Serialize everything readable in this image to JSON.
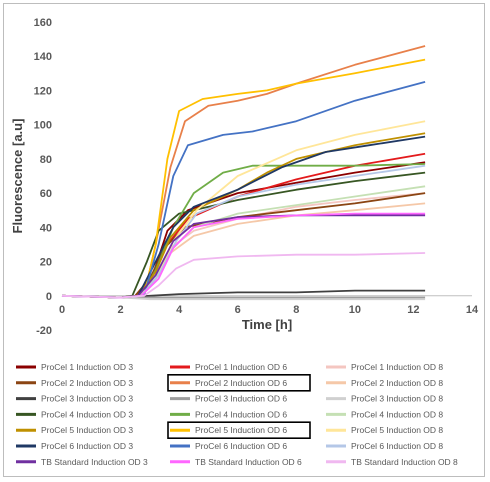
{
  "chart_data": {
    "type": "line",
    "xlabel": "Time  [h]",
    "ylabel": "Fluorescence  [a.u]",
    "xlim": [
      0,
      14
    ],
    "ylim": [
      -20,
      160
    ],
    "x_ticks": [
      "0",
      "2",
      "4",
      "6",
      "8",
      "10",
      "12",
      "14"
    ],
    "y_ticks": [
      "-20",
      "0",
      "20",
      "40",
      "60",
      "80",
      "100",
      "120",
      "140",
      "160"
    ],
    "grid": false,
    "legend_position": "bottom",
    "legend_columns": 3,
    "highlighted_entries": [
      "ProCel 2 Induction OD 6",
      "ProCel 5 Induction OD 6"
    ],
    "series": [
      {
        "name": "ProCel 1 Induction OD 3",
        "color": "#8b0000",
        "points": [
          [
            0,
            0
          ],
          [
            2,
            -1
          ],
          [
            2.5,
            0
          ],
          [
            3.1,
            12
          ],
          [
            3.6,
            38
          ],
          [
            4.3,
            50
          ],
          [
            6,
            60
          ],
          [
            8,
            66
          ],
          [
            10,
            72
          ],
          [
            12.4,
            78
          ]
        ]
      },
      {
        "name": "ProCel 1 Induction OD 6",
        "color": "#e31a1c",
        "points": [
          [
            0,
            0
          ],
          [
            2,
            -1
          ],
          [
            2.6,
            0
          ],
          [
            3.2,
            15
          ],
          [
            3.6,
            30
          ],
          [
            4.3,
            45
          ],
          [
            6,
            58
          ],
          [
            8,
            68
          ],
          [
            10,
            76
          ],
          [
            12.4,
            83
          ]
        ]
      },
      {
        "name": "ProCel 1 Induction OD 8",
        "color": "#f4c6c0",
        "points": [
          [
            0,
            0
          ],
          [
            2,
            -1
          ],
          [
            2.7,
            0
          ],
          [
            3.2,
            10
          ],
          [
            3.7,
            28
          ],
          [
            4.5,
            38
          ],
          [
            6,
            45
          ],
          [
            8,
            52
          ],
          [
            10,
            56
          ],
          [
            12.4,
            60
          ]
        ]
      },
      {
        "name": "ProCel 2 Induction OD 3",
        "color": "#8b4513",
        "points": [
          [
            0,
            0
          ],
          [
            2,
            -1
          ],
          [
            2.5,
            0
          ],
          [
            3.0,
            10
          ],
          [
            3.5,
            28
          ],
          [
            4.2,
            40
          ],
          [
            6,
            46
          ],
          [
            8,
            50
          ],
          [
            10,
            54
          ],
          [
            12.4,
            60
          ]
        ]
      },
      {
        "name": "ProCel 2 Induction OD 6",
        "color": "#e8804a",
        "points": [
          [
            0,
            0
          ],
          [
            2,
            -1
          ],
          [
            2.8,
            0
          ],
          [
            3.2,
            30
          ],
          [
            3.7,
            75
          ],
          [
            4.2,
            102
          ],
          [
            5,
            111
          ],
          [
            6,
            114
          ],
          [
            7,
            118
          ],
          [
            8,
            124
          ],
          [
            10,
            135
          ],
          [
            12.4,
            146
          ]
        ]
      },
      {
        "name": "ProCel 2 Induction OD 8",
        "color": "#f5c8a8",
        "points": [
          [
            0,
            0
          ],
          [
            2,
            -1
          ],
          [
            2.6,
            0
          ],
          [
            3.2,
            10
          ],
          [
            3.7,
            25
          ],
          [
            4.5,
            35
          ],
          [
            6,
            42
          ],
          [
            8,
            47
          ],
          [
            10,
            50
          ],
          [
            12.4,
            54
          ]
        ]
      },
      {
        "name": "ProCel 3 Induction OD 3",
        "color": "#404040",
        "points": [
          [
            0,
            0
          ],
          [
            2,
            -1
          ],
          [
            3,
            0
          ],
          [
            4,
            1
          ],
          [
            6,
            2
          ],
          [
            8,
            2
          ],
          [
            10,
            3
          ],
          [
            12.4,
            3
          ]
        ]
      },
      {
        "name": "ProCel 3 Induction OD 6",
        "color": "#9e9e9e",
        "points": [
          [
            0,
            0
          ],
          [
            2,
            -1
          ],
          [
            3,
            -1
          ],
          [
            4,
            -1
          ],
          [
            6,
            -1
          ],
          [
            8,
            -1
          ],
          [
            10,
            -1
          ],
          [
            12.4,
            -1
          ]
        ]
      },
      {
        "name": "ProCel 3 Induction OD 8",
        "color": "#d0d0d0",
        "points": [
          [
            0,
            0
          ],
          [
            2,
            -1
          ],
          [
            3,
            -2
          ],
          [
            4,
            -2
          ],
          [
            6,
            -2
          ],
          [
            8,
            -2
          ],
          [
            10,
            -2
          ],
          [
            12.4,
            -2
          ]
        ]
      },
      {
        "name": "ProCel 4 Induction OD 3",
        "color": "#375623",
        "points": [
          [
            0,
            0
          ],
          [
            2,
            -1
          ],
          [
            2.4,
            0
          ],
          [
            2.9,
            20
          ],
          [
            3.3,
            38
          ],
          [
            4,
            48
          ],
          [
            6,
            56
          ],
          [
            8,
            62
          ],
          [
            10,
            67
          ],
          [
            12.4,
            72
          ]
        ]
      },
      {
        "name": "ProCel 4 Induction OD 6",
        "color": "#70ad47",
        "points": [
          [
            0,
            0
          ],
          [
            2,
            -1
          ],
          [
            2.7,
            0
          ],
          [
            3.2,
            15
          ],
          [
            3.8,
            40
          ],
          [
            4.5,
            60
          ],
          [
            5.5,
            72
          ],
          [
            6.5,
            76
          ],
          [
            8,
            76
          ],
          [
            10,
            76
          ],
          [
            12.4,
            77
          ]
        ]
      },
      {
        "name": "ProCel 4 Induction OD 8",
        "color": "#c5e0b4",
        "points": [
          [
            0,
            0
          ],
          [
            2,
            -1
          ],
          [
            2.6,
            0
          ],
          [
            3.2,
            10
          ],
          [
            3.8,
            28
          ],
          [
            4.5,
            40
          ],
          [
            6,
            48
          ],
          [
            8,
            53
          ],
          [
            10,
            58
          ],
          [
            12.4,
            64
          ]
        ]
      },
      {
        "name": "ProCel 5 Induction OD 3",
        "color": "#bf9000",
        "points": [
          [
            0,
            0
          ],
          [
            2,
            -1
          ],
          [
            2.6,
            0
          ],
          [
            3.2,
            14
          ],
          [
            3.7,
            34
          ],
          [
            4.5,
            50
          ],
          [
            6,
            62
          ],
          [
            7,
            72
          ],
          [
            8,
            80
          ],
          [
            10,
            88
          ],
          [
            12.4,
            95
          ]
        ]
      },
      {
        "name": "ProCel 5 Induction OD 6",
        "color": "#ffc000",
        "points": [
          [
            0,
            0
          ],
          [
            2,
            -1
          ],
          [
            2.8,
            0
          ],
          [
            3.2,
            30
          ],
          [
            3.6,
            80
          ],
          [
            4,
            108
          ],
          [
            4.8,
            115
          ],
          [
            6,
            118
          ],
          [
            7,
            120
          ],
          [
            8,
            124
          ],
          [
            10,
            130
          ],
          [
            12.4,
            138
          ]
        ]
      },
      {
        "name": "ProCel 5 Induction OD 8",
        "color": "#ffe699",
        "points": [
          [
            0,
            0
          ],
          [
            2,
            -1
          ],
          [
            2.7,
            0
          ],
          [
            3.3,
            12
          ],
          [
            3.8,
            32
          ],
          [
            4.6,
            50
          ],
          [
            6,
            70
          ],
          [
            8,
            85
          ],
          [
            10,
            94
          ],
          [
            12.4,
            102
          ]
        ]
      },
      {
        "name": "ProCel 6 Induction OD 3",
        "color": "#1f3864",
        "points": [
          [
            0,
            0
          ],
          [
            2,
            -1
          ],
          [
            2.6,
            0
          ],
          [
            3.2,
            20
          ],
          [
            3.8,
            40
          ],
          [
            4.5,
            52
          ],
          [
            6,
            62
          ],
          [
            7.5,
            75
          ],
          [
            9,
            84
          ],
          [
            10.5,
            88
          ],
          [
            12.4,
            93
          ]
        ]
      },
      {
        "name": "ProCel 6 Induction OD 6",
        "color": "#4472c4",
        "points": [
          [
            0,
            0
          ],
          [
            2,
            -1
          ],
          [
            2.8,
            0
          ],
          [
            3.3,
            30
          ],
          [
            3.8,
            70
          ],
          [
            4.3,
            88
          ],
          [
            5.5,
            94
          ],
          [
            6.5,
            96
          ],
          [
            8,
            102
          ],
          [
            10,
            114
          ],
          [
            12.4,
            125
          ]
        ]
      },
      {
        "name": "ProCel 6 Induction OD 8",
        "color": "#b4c7e7",
        "points": [
          [
            0,
            0
          ],
          [
            2,
            -1
          ],
          [
            2.7,
            0
          ],
          [
            3.3,
            12
          ],
          [
            3.9,
            32
          ],
          [
            4.6,
            48
          ],
          [
            6,
            58
          ],
          [
            8,
            65
          ],
          [
            10,
            70
          ],
          [
            12.4,
            76
          ]
        ]
      },
      {
        "name": "TB Standard Induction OD 3",
        "color": "#7030a0",
        "points": [
          [
            0,
            0
          ],
          [
            2,
            -1
          ],
          [
            2.6,
            0
          ],
          [
            3.2,
            12
          ],
          [
            3.8,
            32
          ],
          [
            4.5,
            42
          ],
          [
            6,
            46
          ],
          [
            8,
            47
          ],
          [
            10,
            47
          ],
          [
            12.4,
            47
          ]
        ]
      },
      {
        "name": "TB Standard Induction OD 6",
        "color": "#ff66ff",
        "points": [
          [
            0,
            0
          ],
          [
            2,
            -1
          ],
          [
            2.7,
            0
          ],
          [
            3.3,
            10
          ],
          [
            3.8,
            28
          ],
          [
            4.5,
            40
          ],
          [
            6,
            45
          ],
          [
            8,
            47
          ],
          [
            10,
            48
          ],
          [
            12.4,
            48
          ]
        ]
      },
      {
        "name": "TB Standard Induction OD 8",
        "color": "#f0b8f0",
        "points": [
          [
            0,
            0
          ],
          [
            2,
            -1
          ],
          [
            2.8,
            0
          ],
          [
            3.3,
            6
          ],
          [
            3.9,
            16
          ],
          [
            4.5,
            21
          ],
          [
            6,
            23
          ],
          [
            8,
            24
          ],
          [
            10,
            24
          ],
          [
            12.4,
            25
          ]
        ]
      }
    ]
  }
}
